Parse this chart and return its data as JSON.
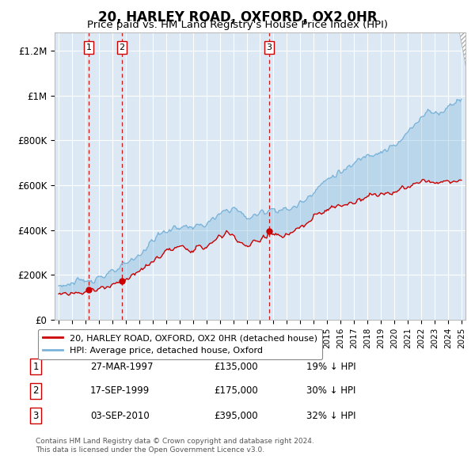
{
  "title": "20, HARLEY ROAD, OXFORD, OX2 0HR",
  "subtitle": "Price paid vs. HM Land Registry's House Price Index (HPI)",
  "title_fontsize": 12,
  "subtitle_fontsize": 9.5,
  "ylabel_ticks": [
    "£0",
    "£200K",
    "£400K",
    "£600K",
    "£800K",
    "£1M",
    "£1.2M"
  ],
  "ytick_values": [
    0,
    200000,
    400000,
    600000,
    800000,
    1000000,
    1200000
  ],
  "ylim": [
    0,
    1280000
  ],
  "xlim_start": 1994.7,
  "xlim_end": 2025.3,
  "background_color": "#ffffff",
  "plot_bg_color": "#dce9f5",
  "grid_color": "#ffffff",
  "transactions": [
    {
      "label": 1,
      "date_num": 1997.24,
      "price": 135000,
      "note": "27-MAR-1997",
      "price_str": "£135,000",
      "pct": "19% ↓ HPI"
    },
    {
      "label": 2,
      "date_num": 1999.71,
      "price": 175000,
      "note": "17-SEP-1999",
      "price_str": "£175,000",
      "pct": "30% ↓ HPI"
    },
    {
      "label": 3,
      "date_num": 2010.67,
      "price": 395000,
      "note": "03-SEP-2010",
      "price_str": "£395,000",
      "pct": "32% ↓ HPI"
    }
  ],
  "legend_entries": [
    "20, HARLEY ROAD, OXFORD, OX2 0HR (detached house)",
    "HPI: Average price, detached house, Oxford"
  ],
  "footnote1": "Contains HM Land Registry data © Crown copyright and database right 2024.",
  "footnote2": "This data is licensed under the Open Government Licence v3.0.",
  "hpi_color": "#7ab3d9",
  "price_color": "#cc0000",
  "dashed_line_color": "#cc0000",
  "marker_color": "#cc0000",
  "shaded_band_alpha": 0.35,
  "hpi_keypoints": [
    [
      1995.0,
      152000
    ],
    [
      1995.5,
      158000
    ],
    [
      1996.0,
      162000
    ],
    [
      1996.5,
      168000
    ],
    [
      1997.0,
      175000
    ],
    [
      1997.5,
      182000
    ],
    [
      1998.0,
      192000
    ],
    [
      1998.5,
      200000
    ],
    [
      1999.0,
      210000
    ],
    [
      1999.5,
      225000
    ],
    [
      2000.0,
      248000
    ],
    [
      2000.5,
      268000
    ],
    [
      2001.0,
      290000
    ],
    [
      2001.5,
      320000
    ],
    [
      2002.0,
      355000
    ],
    [
      2002.5,
      380000
    ],
    [
      2003.0,
      395000
    ],
    [
      2003.5,
      405000
    ],
    [
      2004.0,
      415000
    ],
    [
      2004.5,
      415000
    ],
    [
      2005.0,
      415000
    ],
    [
      2005.5,
      418000
    ],
    [
      2006.0,
      428000
    ],
    [
      2006.5,
      445000
    ],
    [
      2007.0,
      468000
    ],
    [
      2007.5,
      490000
    ],
    [
      2008.0,
      500000
    ],
    [
      2008.5,
      480000
    ],
    [
      2009.0,
      455000
    ],
    [
      2009.5,
      460000
    ],
    [
      2010.0,
      475000
    ],
    [
      2010.5,
      490000
    ],
    [
      2011.0,
      495000
    ],
    [
      2011.5,
      490000
    ],
    [
      2012.0,
      490000
    ],
    [
      2012.5,
      500000
    ],
    [
      2013.0,
      520000
    ],
    [
      2013.5,
      545000
    ],
    [
      2014.0,
      575000
    ],
    [
      2014.5,
      600000
    ],
    [
      2015.0,
      625000
    ],
    [
      2015.5,
      645000
    ],
    [
      2016.0,
      660000
    ],
    [
      2016.5,
      670000
    ],
    [
      2017.0,
      695000
    ],
    [
      2017.5,
      720000
    ],
    [
      2018.0,
      740000
    ],
    [
      2018.5,
      745000
    ],
    [
      2019.0,
      750000
    ],
    [
      2019.5,
      760000
    ],
    [
      2020.0,
      775000
    ],
    [
      2020.5,
      795000
    ],
    [
      2021.0,
      835000
    ],
    [
      2021.5,
      870000
    ],
    [
      2022.0,
      910000
    ],
    [
      2022.5,
      930000
    ],
    [
      2023.0,
      920000
    ],
    [
      2023.5,
      925000
    ],
    [
      2024.0,
      950000
    ],
    [
      2024.5,
      975000
    ],
    [
      2025.0,
      990000
    ]
  ],
  "prop_keypoints": [
    [
      1995.0,
      115000
    ],
    [
      1995.5,
      118000
    ],
    [
      1996.0,
      120000
    ],
    [
      1996.5,
      122000
    ],
    [
      1997.0,
      128000
    ],
    [
      1997.24,
      135000
    ],
    [
      1997.5,
      133000
    ],
    [
      1998.0,
      140000
    ],
    [
      1998.5,
      148000
    ],
    [
      1999.0,
      155000
    ],
    [
      1999.5,
      168000
    ],
    [
      1999.71,
      175000
    ],
    [
      2000.0,
      182000
    ],
    [
      2000.5,
      200000
    ],
    [
      2001.0,
      215000
    ],
    [
      2001.5,
      235000
    ],
    [
      2002.0,
      258000
    ],
    [
      2002.5,
      285000
    ],
    [
      2003.0,
      305000
    ],
    [
      2003.5,
      315000
    ],
    [
      2004.0,
      320000
    ],
    [
      2004.5,
      318000
    ],
    [
      2005.0,
      315000
    ],
    [
      2005.5,
      318000
    ],
    [
      2006.0,
      328000
    ],
    [
      2006.5,
      345000
    ],
    [
      2007.0,
      370000
    ],
    [
      2007.5,
      390000
    ],
    [
      2008.0,
      375000
    ],
    [
      2008.5,
      350000
    ],
    [
      2009.0,
      325000
    ],
    [
      2009.5,
      340000
    ],
    [
      2010.0,
      358000
    ],
    [
      2010.5,
      380000
    ],
    [
      2010.67,
      395000
    ],
    [
      2011.0,
      385000
    ],
    [
      2011.5,
      370000
    ],
    [
      2012.0,
      375000
    ],
    [
      2012.5,
      390000
    ],
    [
      2013.0,
      410000
    ],
    [
      2013.5,
      430000
    ],
    [
      2014.0,
      455000
    ],
    [
      2014.5,
      475000
    ],
    [
      2015.0,
      490000
    ],
    [
      2015.5,
      500000
    ],
    [
      2016.0,
      508000
    ],
    [
      2016.5,
      515000
    ],
    [
      2017.0,
      525000
    ],
    [
      2017.5,
      540000
    ],
    [
      2018.0,
      555000
    ],
    [
      2018.5,
      558000
    ],
    [
      2019.0,
      560000
    ],
    [
      2019.5,
      565000
    ],
    [
      2020.0,
      572000
    ],
    [
      2020.5,
      578000
    ],
    [
      2021.0,
      590000
    ],
    [
      2021.5,
      600000
    ],
    [
      2022.0,
      618000
    ],
    [
      2022.5,
      625000
    ],
    [
      2023.0,
      605000
    ],
    [
      2023.5,
      610000
    ],
    [
      2024.0,
      615000
    ],
    [
      2024.5,
      620000
    ],
    [
      2025.0,
      618000
    ]
  ]
}
